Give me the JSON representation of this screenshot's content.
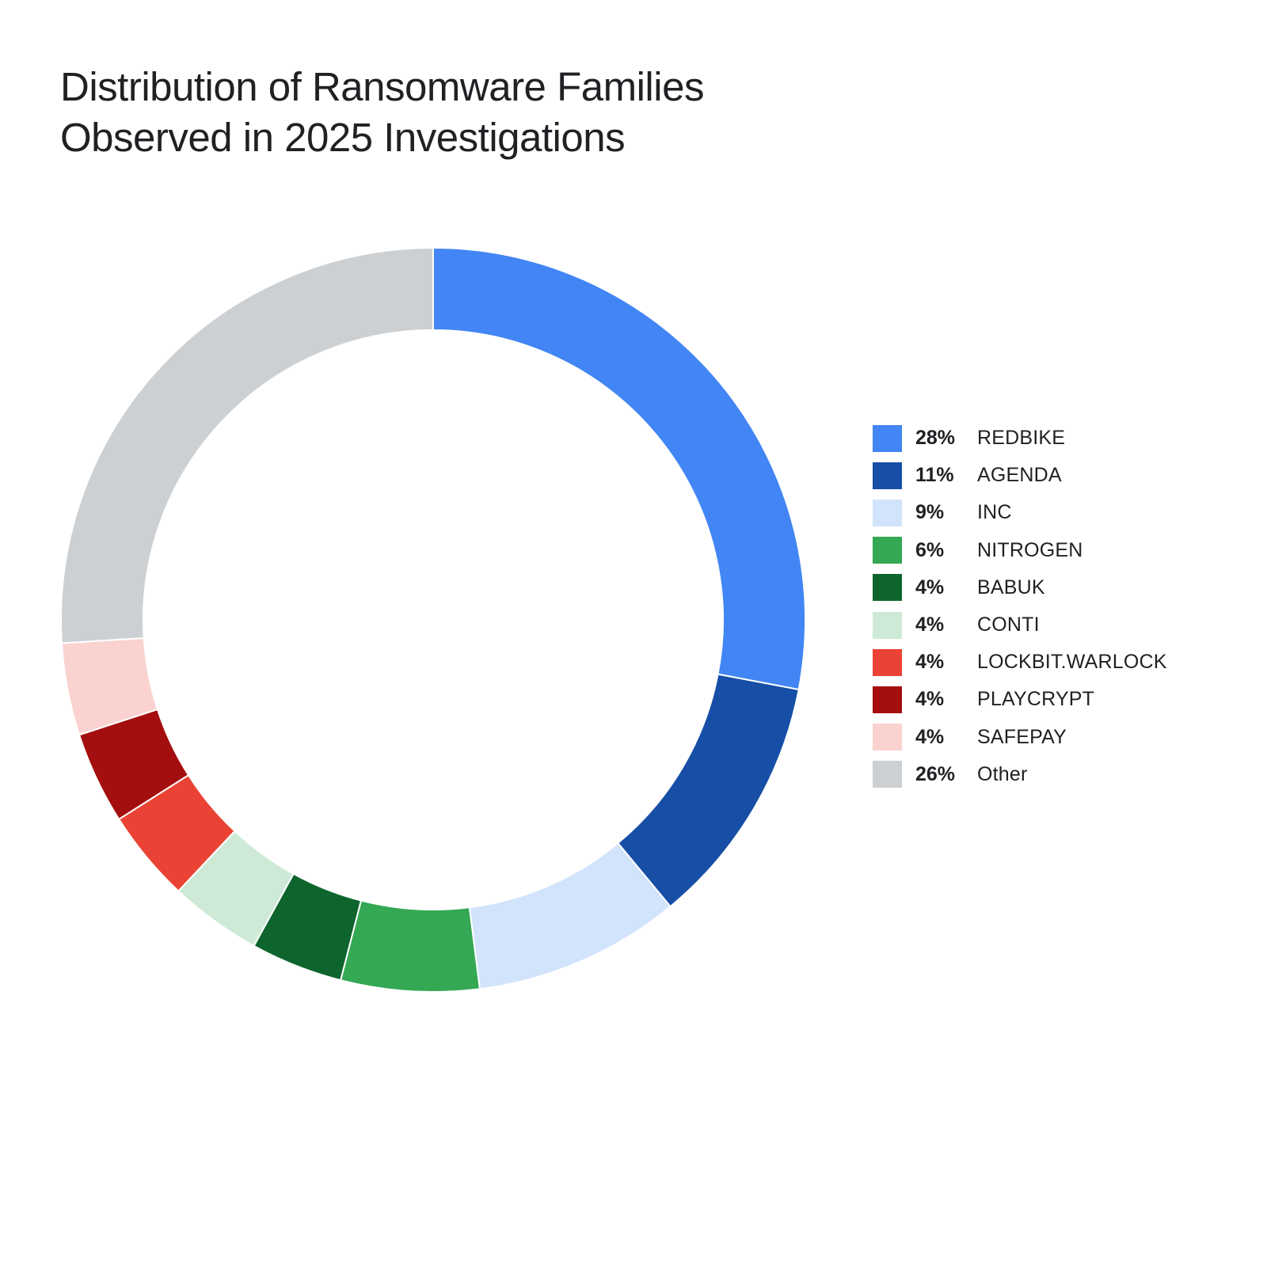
{
  "title": {
    "line1": "Distribution of Ransomware Families",
    "line2": "Observed in 2025 Investigations"
  },
  "legend": [
    {
      "pct": "28%",
      "label": "REDBIKE",
      "color": "#4285F4"
    },
    {
      "pct": "11%",
      "label": "AGENDA",
      "color": "#174EA6"
    },
    {
      "pct": "9%",
      "label": "INC",
      "color": "#D2E3FC"
    },
    {
      "pct": "6%",
      "label": "NITROGEN",
      "color": "#34A853"
    },
    {
      "pct": "4%",
      "label": "BABUK",
      "color": "#0D652D"
    },
    {
      "pct": "4%",
      "label": "CONTI",
      "color": "#CEEAD6"
    },
    {
      "pct": "4%",
      "label": "LOCKBIT.WARLOCK",
      "color": "#EA4335"
    },
    {
      "pct": "4%",
      "label": "PLAYCRYPT",
      "color": "#A50E0E"
    },
    {
      "pct": "4%",
      "label": "SAFEPAY",
      "color": "#FAD2CF"
    },
    {
      "pct": "26%",
      "label": "Other",
      "color": "#CDD0D3"
    }
  ],
  "chart_data": {
    "type": "pie",
    "subtype": "donut",
    "title": "Distribution of Ransomware Families Observed in 2025 Investigations",
    "categories": [
      "REDBIKE",
      "AGENDA",
      "INC",
      "NITROGEN",
      "BABUK",
      "CONTI",
      "LOCKBIT.WARLOCK",
      "PLAYCRYPT",
      "SAFEPAY",
      "Other"
    ],
    "values": [
      28,
      11,
      9,
      6,
      4,
      4,
      4,
      4,
      4,
      26
    ],
    "unit": "%",
    "colors": [
      "#4285F4",
      "#174EA6",
      "#D2E3FC",
      "#34A853",
      "#0D652D",
      "#CEEAD6",
      "#EA4335",
      "#A50E0E",
      "#FAD2CF",
      "#CDD0D3"
    ],
    "start_angle": "top (12 o'clock)",
    "direction": "clockwise",
    "legend_position": "right",
    "xlabel": "",
    "ylabel": ""
  }
}
